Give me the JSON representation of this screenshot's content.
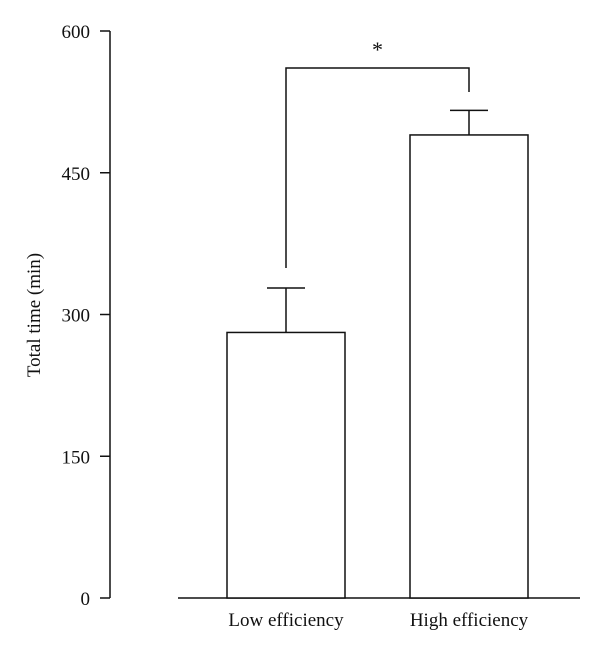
{
  "chart_data": {
    "type": "bar",
    "title": "",
    "xlabel": "",
    "ylabel": "Total time (min)",
    "ylim": [
      0,
      600
    ],
    "yticks": [
      0,
      150,
      300,
      450,
      600
    ],
    "categories": [
      "Low efficiency",
      "High efficiency"
    ],
    "values": [
      281,
      490
    ],
    "error_upper": [
      328,
      516
    ],
    "significance": {
      "between": [
        "Low efficiency",
        "High efficiency"
      ],
      "label": "*"
    },
    "bar_fill": "#ffffff",
    "line_color": "#111111"
  }
}
